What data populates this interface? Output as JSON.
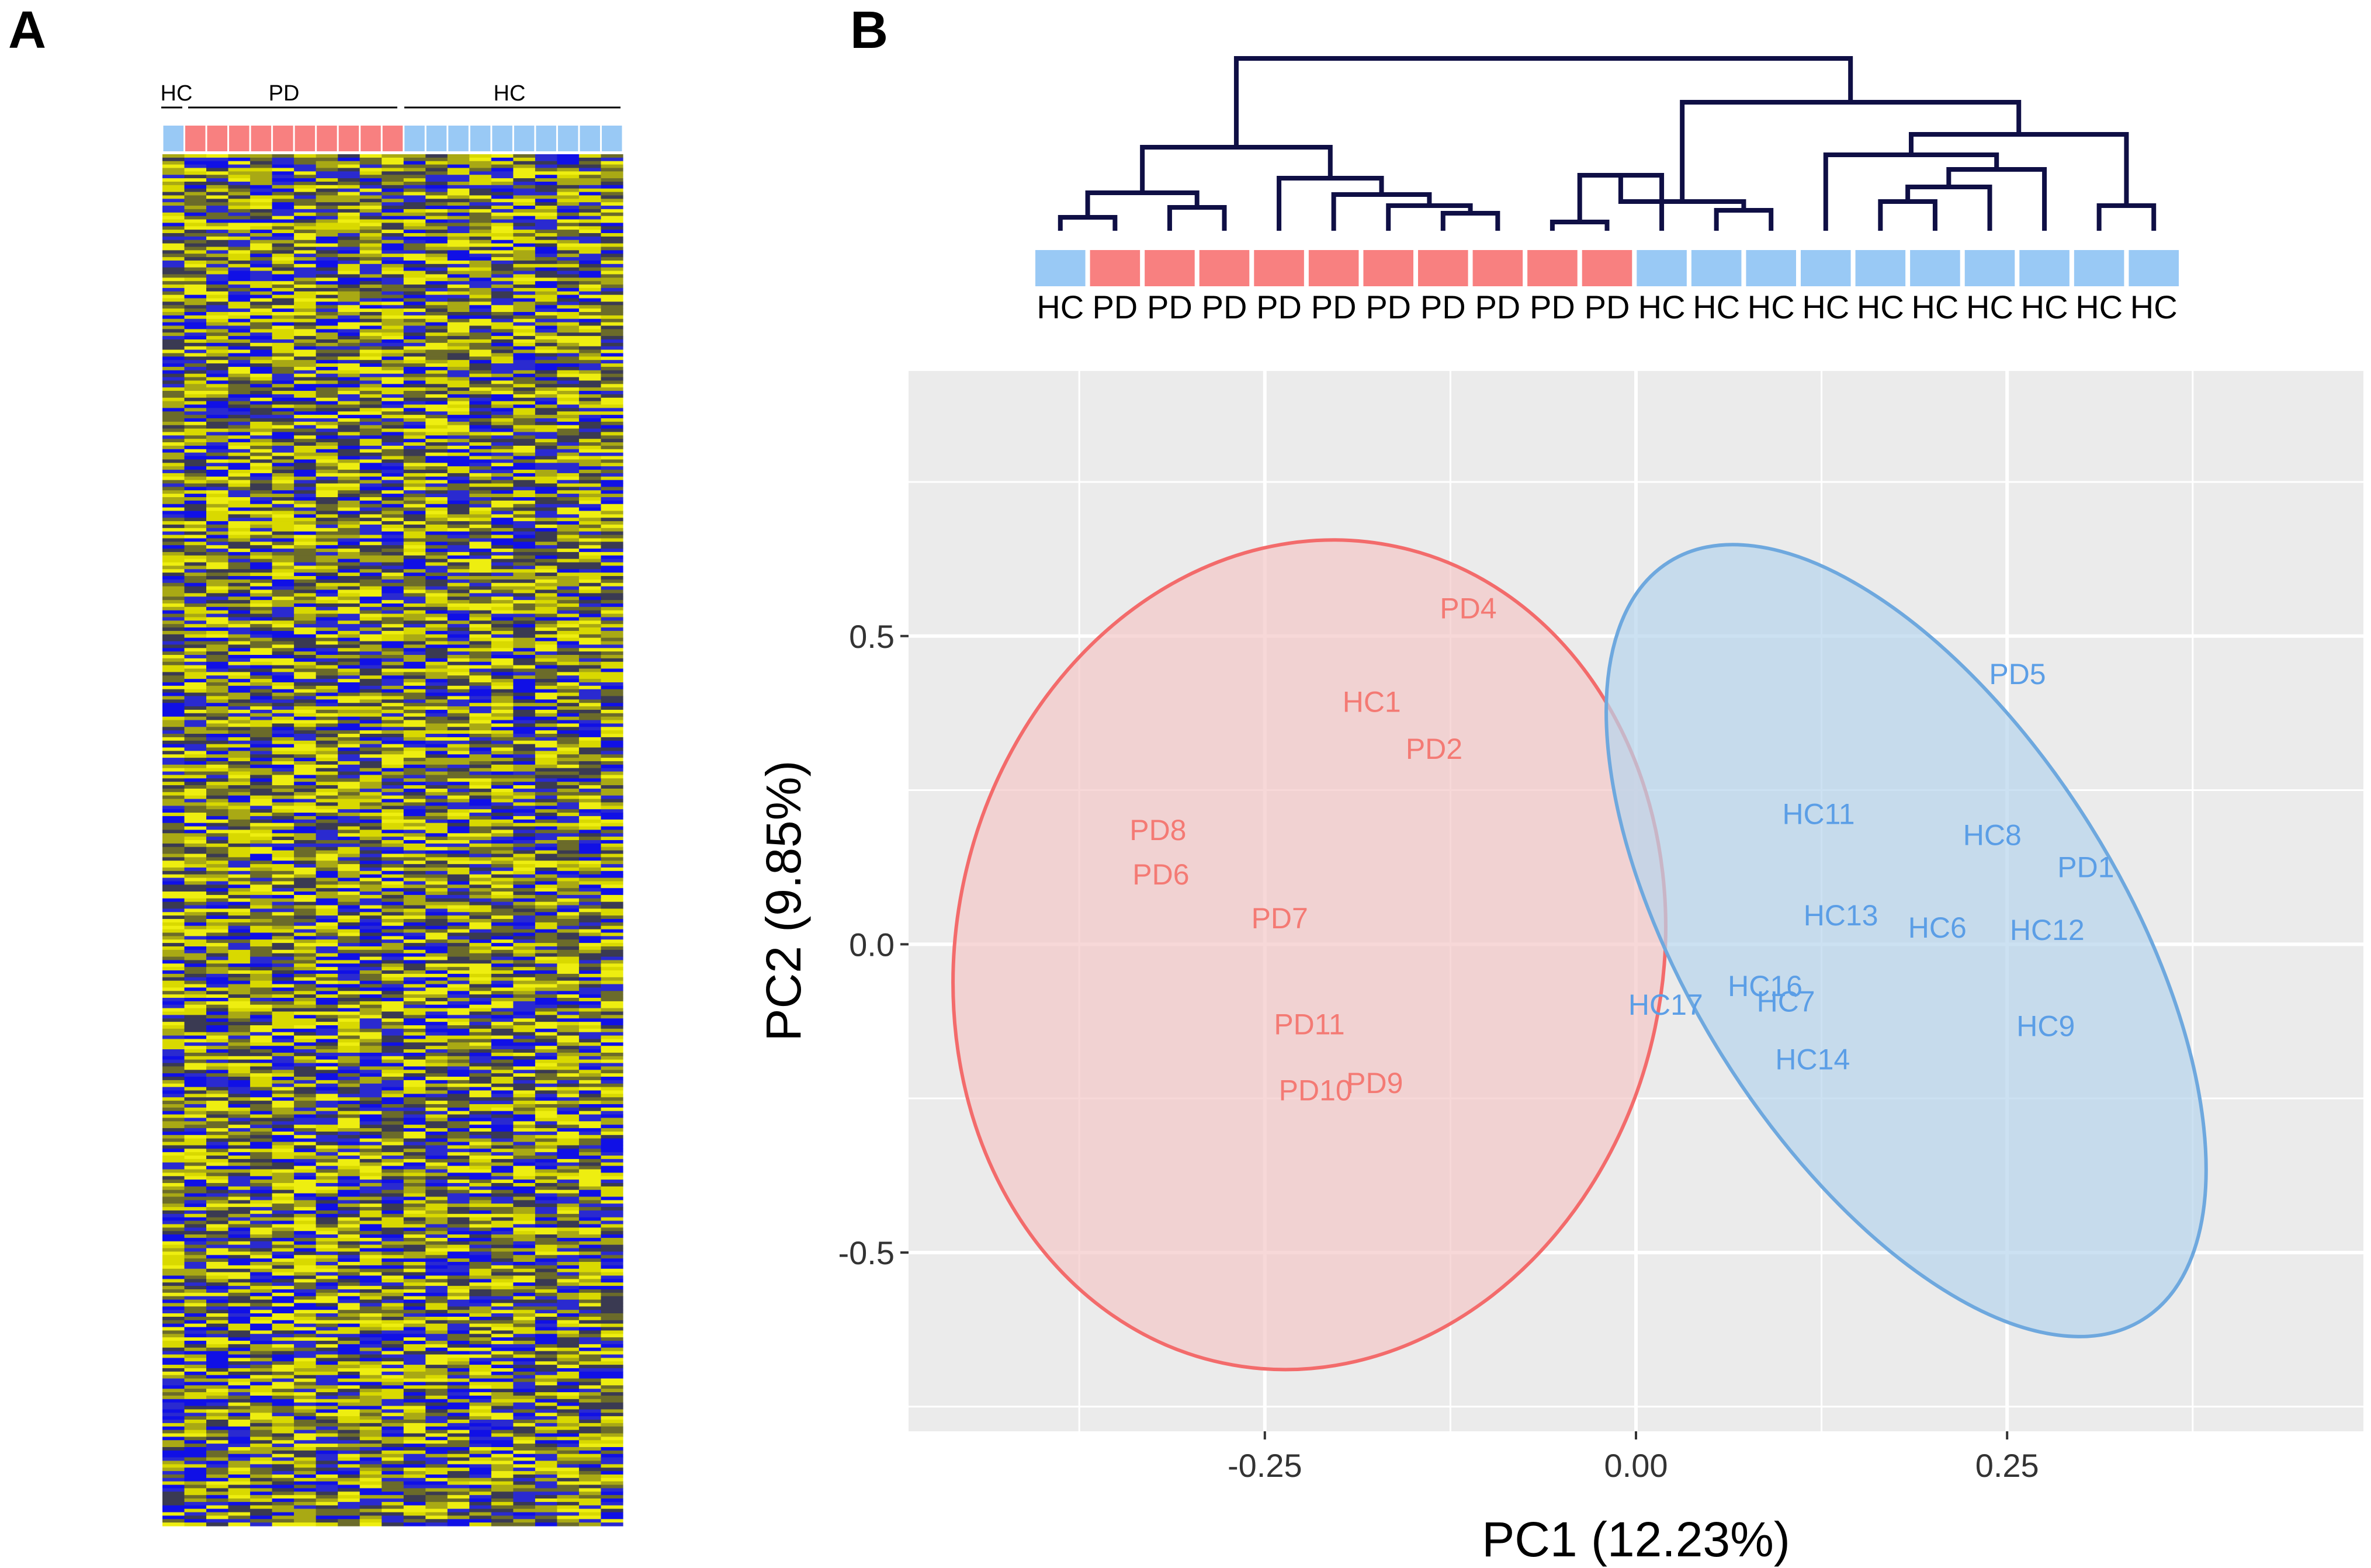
{
  "panels": {
    "a_label": "A",
    "b_label": "B"
  },
  "colors": {
    "hc": "#99c9f5",
    "pd": "#f88080",
    "hc_text": "#5b9ee6",
    "pd_text": "#f47a74",
    "hc_ellipse_stroke": "#6ea8de",
    "pd_ellipse_stroke": "#f36b6b",
    "hc_ellipse_fill": "#b7d4ed",
    "pd_ellipse_fill": "#f3c7c7",
    "heat_blue": "#1010e6",
    "heat_yellow": "#d9d900",
    "heat_dark": "#3a3a52",
    "dendrogram": "#0f0f45",
    "panel_bg": "#ebebeb",
    "grid": "#ffffff"
  },
  "heatmap": {
    "group_labels": [
      "HC",
      "PD",
      "HC"
    ],
    "column_groups": [
      "HC",
      "PD",
      "PD",
      "PD",
      "PD",
      "PD",
      "PD",
      "PD",
      "PD",
      "PD",
      "PD",
      "HC",
      "HC",
      "HC",
      "HC",
      "HC",
      "HC",
      "HC",
      "HC",
      "HC",
      "HC"
    ]
  },
  "dendrogram": {
    "leaf_labels": [
      "HC",
      "PD",
      "PD",
      "PD",
      "PD",
      "PD",
      "PD",
      "PD",
      "PD",
      "PD",
      "PD",
      "HC",
      "HC",
      "HC",
      "HC",
      "HC",
      "HC",
      "HC",
      "HC",
      "HC",
      "HC"
    ]
  },
  "chart_data": {
    "type": "scatter",
    "title": "",
    "xlabel": "PC1 (12.23%)",
    "ylabel": "PC2 (9.85%)",
    "xlim": [
      -0.49,
      0.49
    ],
    "ylim": [
      -0.79,
      0.93
    ],
    "xticks": [
      -0.25,
      0.0,
      0.25
    ],
    "xtick_labels": [
      "-0.25",
      "0.00",
      "0.25"
    ],
    "yticks": [
      -0.5,
      0.0,
      0.5
    ],
    "ytick_labels": [
      "-0.5",
      "0.0",
      "0.5"
    ],
    "grid": true,
    "legend": "none",
    "series": [
      {
        "points": [
          {
            "label": "PD4",
            "x": -0.113,
            "y": 0.545
          },
          {
            "label": "HC1",
            "x": -0.178,
            "y": 0.393
          },
          {
            "label": "PD2",
            "x": -0.136,
            "y": 0.317
          },
          {
            "label": "PD8",
            "x": -0.322,
            "y": 0.185
          },
          {
            "label": "PD6",
            "x": -0.32,
            "y": 0.113
          },
          {
            "label": "PD7",
            "x": -0.24,
            "y": 0.042
          },
          {
            "label": "PD11",
            "x": -0.22,
            "y": -0.13
          },
          {
            "label": "PD10",
            "x": -0.216,
            "y": -0.237
          },
          {
            "label": "PD9",
            "x": -0.176,
            "y": -0.225
          }
        ]
      },
      {
        "points": [
          {
            "label": "PD5",
            "x": 0.257,
            "y": 0.438
          },
          {
            "label": "HC11",
            "x": 0.123,
            "y": 0.211
          },
          {
            "label": "HC8",
            "x": 0.24,
            "y": 0.177
          },
          {
            "label": "PD1",
            "x": 0.303,
            "y": 0.125
          },
          {
            "label": "HC13",
            "x": 0.138,
            "y": 0.047
          },
          {
            "label": "HC6",
            "x": 0.203,
            "y": 0.027
          },
          {
            "label": "HC12",
            "x": 0.277,
            "y": 0.023
          },
          {
            "label": "HC16",
            "x": 0.087,
            "y": -0.068
          },
          {
            "label": "HC7",
            "x": 0.101,
            "y": -0.093
          },
          {
            "label": "HC17",
            "x": 0.02,
            "y": -0.098
          },
          {
            "label": "HC9",
            "x": 0.276,
            "y": -0.133
          },
          {
            "label": "HC14",
            "x": 0.119,
            "y": -0.187
          }
        ]
      }
    ],
    "ellipses": [
      {
        "group": "PD",
        "cx": -0.22,
        "cy": -0.017,
        "rx_ax": 0.238,
        "ry_ax": 0.677,
        "tilt_deg": 12
      },
      {
        "group": "HC",
        "cx": 0.182,
        "cy": 0.006,
        "rx_ax": 0.301,
        "ry_ax": 0.352,
        "tilt_deg": 58
      }
    ]
  }
}
